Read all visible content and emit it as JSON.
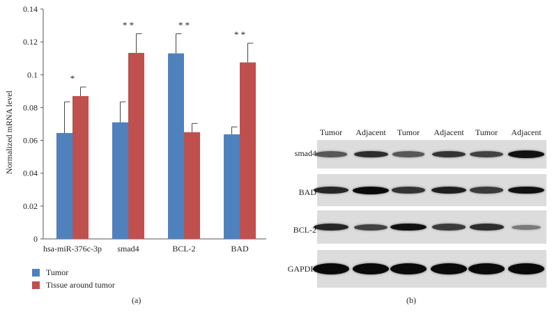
{
  "chart_data": {
    "type": "bar",
    "title": "",
    "ylabel": "Normalized mRNA level",
    "xlabel": "",
    "ylim": [
      0,
      0.14
    ],
    "yticks": [
      "0",
      "0.02",
      "0.04",
      "0.06",
      "0.08",
      "0.1",
      "0.12",
      "0.14"
    ],
    "ytick_values": [
      0,
      0.02,
      0.04,
      0.06,
      0.08,
      0.1,
      0.12,
      0.14
    ],
    "categories": [
      "hsa-miR-376c-3p",
      "smad4",
      "BCL-2",
      "BAD"
    ],
    "series": [
      {
        "name": "Tumor",
        "color": "#4f81bd",
        "values": [
          0.0645,
          0.071,
          0.113,
          0.0637
        ],
        "errors": [
          0.019,
          0.0125,
          0.012,
          0.0045
        ]
      },
      {
        "name": "Tissue around tumor",
        "color": "#c0504d",
        "values": [
          0.087,
          0.1133,
          0.065,
          0.1075
        ],
        "errors": [
          0.0055,
          0.0117,
          0.0053,
          0.0117
        ]
      }
    ],
    "significance": [
      "*",
      "* *",
      "* *",
      "* *"
    ],
    "legend": {
      "placement": "bottom-left",
      "entries": [
        "Tumor",
        "Tissue around tumor"
      ]
    },
    "grid": false
  },
  "labels": {
    "panel_a": "(a)",
    "panel_b": "(b)"
  },
  "western_blot": {
    "columns": [
      "Tumor",
      "Adjacent",
      "Tumor",
      "Adjacent",
      "Tumor",
      "Adjacent"
    ],
    "rows": [
      {
        "label": "smad4",
        "intensities": [
          0.45,
          0.75,
          0.45,
          0.7,
          0.6,
          0.95
        ]
      },
      {
        "label": "BAD",
        "intensities": [
          0.8,
          1.0,
          0.7,
          0.85,
          0.65,
          0.95
        ]
      },
      {
        "label": "BCL-2",
        "intensities": [
          0.8,
          0.6,
          0.95,
          0.65,
          0.75,
          0.2
        ]
      },
      {
        "label": "GAPDH",
        "intensities": [
          1.0,
          1.0,
          1.0,
          1.0,
          1.0,
          1.0
        ]
      }
    ]
  }
}
